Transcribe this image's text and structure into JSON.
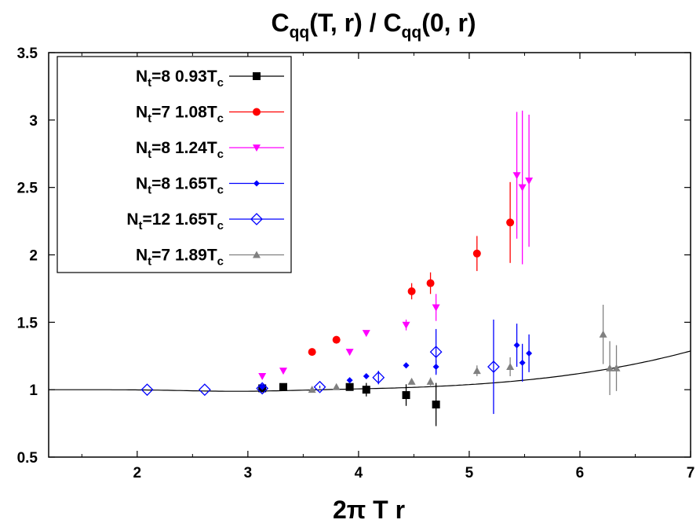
{
  "chart_data": {
    "type": "scatter",
    "title": {
      "main": "C",
      "sub1": "qq",
      "mid": "(T, r) / C",
      "sub2": "qq",
      "end": "(0, r)"
    },
    "xlabel": "2π T r",
    "x_range": [
      1.2,
      7
    ],
    "y_range": [
      0.5,
      3.5
    ],
    "x_ticks": [
      "2",
      "3",
      "4",
      "5",
      "6",
      "7"
    ],
    "y_ticks": [
      "0.5",
      "1",
      "1.5",
      "2",
      "2.5",
      "3",
      "3.5"
    ],
    "legend_position": "top-left",
    "series": [
      {
        "label": {
          "a": "N",
          "b": "t",
          "c": "=8  0.93T",
          "d": "c"
        },
        "color": "#000000",
        "marker": "square-filled",
        "points": [
          [
            3.13,
            1.01,
            0
          ],
          [
            3.32,
            1.02,
            0
          ],
          [
            3.92,
            1.02,
            0.02
          ],
          [
            4.07,
            1.0,
            0.05
          ],
          [
            4.43,
            0.96,
            0.08
          ],
          [
            4.7,
            0.89,
            0.16
          ]
        ]
      },
      {
        "label": {
          "a": "N",
          "b": "t",
          "c": "=7  1.08T",
          "d": "c"
        },
        "color": "#ff0000",
        "marker": "circle-filled",
        "points": [
          [
            3.58,
            1.28,
            0.01
          ],
          [
            3.8,
            1.37,
            0.01
          ],
          [
            4.48,
            1.73,
            0.06
          ],
          [
            4.65,
            1.79,
            0.08
          ],
          [
            5.07,
            2.01,
            0.13
          ],
          [
            5.37,
            2.24,
            0.3
          ]
        ]
      },
      {
        "label": {
          "a": "N",
          "b": "t",
          "c": "=8  1.24T",
          "d": "c"
        },
        "color": "#ff00ff",
        "marker": "triangle-down-filled",
        "points": [
          [
            3.13,
            1.1,
            0.02
          ],
          [
            3.32,
            1.14,
            0.02
          ],
          [
            3.92,
            1.28,
            0.02
          ],
          [
            4.07,
            1.42,
            0.02
          ],
          [
            4.43,
            1.48,
            0.04
          ],
          [
            4.7,
            1.61,
            0.1
          ],
          [
            5.43,
            2.59,
            0.47
          ],
          [
            5.48,
            2.5,
            0.57
          ],
          [
            5.54,
            2.55,
            0.49
          ]
        ]
      },
      {
        "label": {
          "a": "N",
          "b": "t",
          "c": "=8  1.65T",
          "d": "c"
        },
        "color": "#0000ff",
        "marker": "diamond-filled",
        "points": [
          [
            3.13,
            1.02,
            0
          ],
          [
            3.92,
            1.07,
            0.01
          ],
          [
            4.07,
            1.1,
            0.01
          ],
          [
            4.43,
            1.18,
            0.02
          ],
          [
            4.7,
            1.17,
            0.05
          ],
          [
            5.43,
            1.33,
            0.16
          ],
          [
            5.48,
            1.2,
            0.14
          ],
          [
            5.54,
            1.27,
            0.14
          ]
        ]
      },
      {
        "label": {
          "a": "N",
          "b": "t",
          "c": "=12  1.65T",
          "d": "c"
        },
        "color": "#0000ff",
        "marker": "diamond-open",
        "points": [
          [
            2.09,
            1.0,
            0
          ],
          [
            2.61,
            1.0,
            0
          ],
          [
            3.13,
            1.01,
            0
          ],
          [
            3.65,
            1.02,
            0.01
          ],
          [
            4.18,
            1.09,
            0.05
          ],
          [
            4.7,
            1.28,
            0.17
          ],
          [
            5.22,
            1.17,
            0.35
          ]
        ]
      },
      {
        "label": {
          "a": "N",
          "b": "t",
          "c": "=7  1.89T",
          "d": "c"
        },
        "color": "#808080",
        "marker": "triangle-up-filled",
        "points": [
          [
            3.58,
            1.0,
            0.01
          ],
          [
            3.8,
            1.02,
            0.01
          ],
          [
            4.48,
            1.06,
            0.02
          ],
          [
            4.65,
            1.06,
            0.03
          ],
          [
            5.07,
            1.14,
            0.04
          ],
          [
            5.37,
            1.17,
            0.07
          ],
          [
            6.21,
            1.41,
            0.22
          ],
          [
            6.27,
            1.16,
            0.2
          ],
          [
            6.33,
            1.16,
            0.17
          ]
        ]
      }
    ]
  }
}
